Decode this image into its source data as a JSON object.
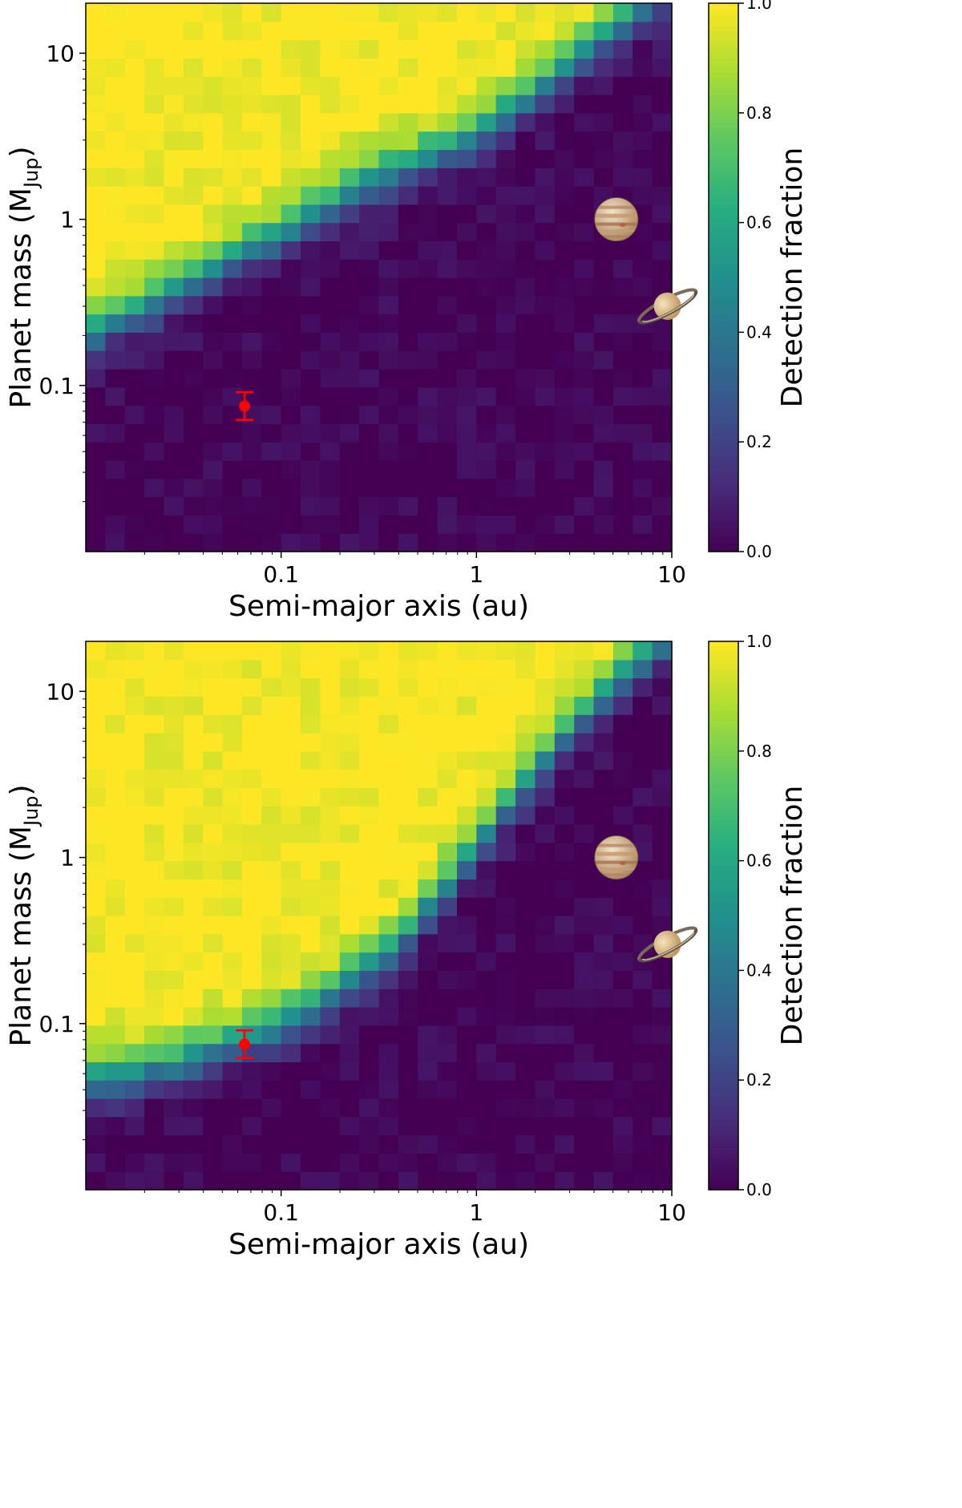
{
  "chart_data": [
    {
      "type": "heatmap",
      "panel": "top",
      "xlabel": "Semi-major axis (au)",
      "ylabel_main": "Planet mass (M",
      "ylabel_sub": "Jup",
      "ylabel_close": ")",
      "colorbar_label": "Detection fraction",
      "x_scale": "log",
      "y_scale": "log",
      "xlim": [
        0.01,
        10
      ],
      "ylim": [
        0.01,
        20
      ],
      "xticks": [
        {
          "value": 0.1,
          "label": "0.1"
        },
        {
          "value": 1,
          "label": "1"
        },
        {
          "value": 10,
          "label": "10"
        }
      ],
      "yticks": [
        {
          "value": 0.1,
          "label": "0.1"
        },
        {
          "value": 1,
          "label": "1"
        },
        {
          "value": 10,
          "label": "10"
        }
      ],
      "colorbar_ticks": [
        {
          "value": 0.0,
          "label": "0.0"
        },
        {
          "value": 0.2,
          "label": "0.2"
        },
        {
          "value": 0.4,
          "label": "0.4"
        },
        {
          "value": 0.6,
          "label": "0.6"
        },
        {
          "value": 0.8,
          "label": "0.8"
        },
        {
          "value": 1.0,
          "label": "1.0"
        }
      ],
      "colormap": "viridis",
      "grid": {
        "nx": 30,
        "ny": 30
      },
      "transition_boundary": [
        [
          0.01,
          0.2
        ],
        [
          0.03,
          0.4
        ],
        [
          0.1,
          0.85
        ],
        [
          0.3,
          1.8
        ],
        [
          1,
          3.2
        ],
        [
          3,
          9
        ],
        [
          10,
          26
        ]
      ],
      "observed_planet": {
        "a": 0.065,
        "mass": 0.075,
        "mass_err_low": 0.013,
        "mass_err_high": 0.016,
        "color": "#ff0000"
      },
      "reference_planets": [
        {
          "icon": "jupiter-icon",
          "a": 5.2,
          "mass": 1.0
        },
        {
          "icon": "saturn-icon",
          "a": 9.5,
          "mass": 0.3
        }
      ]
    },
    {
      "type": "heatmap",
      "panel": "bottom",
      "xlabel": "Semi-major axis (au)",
      "ylabel_main": "Planet mass (M",
      "ylabel_sub": "Jup",
      "ylabel_close": ")",
      "colorbar_label": "Detection fraction",
      "x_scale": "log",
      "y_scale": "log",
      "xlim": [
        0.01,
        10
      ],
      "ylim": [
        0.01,
        20
      ],
      "xticks": [
        {
          "value": 0.1,
          "label": "0.1"
        },
        {
          "value": 1,
          "label": "1"
        },
        {
          "value": 10,
          "label": "10"
        }
      ],
      "yticks": [
        {
          "value": 0.1,
          "label": "0.1"
        },
        {
          "value": 1,
          "label": "1"
        },
        {
          "value": 10,
          "label": "10"
        }
      ],
      "colorbar_ticks": [
        {
          "value": 0.0,
          "label": "0.0"
        },
        {
          "value": 0.2,
          "label": "0.2"
        },
        {
          "value": 0.4,
          "label": "0.4"
        },
        {
          "value": 0.6,
          "label": "0.6"
        },
        {
          "value": 0.8,
          "label": "0.8"
        },
        {
          "value": 1.0,
          "label": "1.0"
        }
      ],
      "colormap": "viridis",
      "grid": {
        "nx": 30,
        "ny": 30
      },
      "transition_boundary": [
        [
          0.01,
          0.045
        ],
        [
          0.03,
          0.06
        ],
        [
          0.1,
          0.1
        ],
        [
          0.2,
          0.17
        ],
        [
          0.4,
          0.3
        ],
        [
          0.7,
          0.7
        ],
        [
          1.5,
          2.2
        ],
        [
          3,
          6
        ],
        [
          6,
          14
        ],
        [
          10,
          22
        ]
      ],
      "observed_planet": {
        "a": 0.065,
        "mass": 0.075,
        "mass_err_low": 0.013,
        "mass_err_high": 0.016,
        "color": "#ff0000"
      },
      "reference_planets": [
        {
          "icon": "jupiter-icon",
          "a": 5.2,
          "mass": 1.0
        },
        {
          "icon": "saturn-icon",
          "a": 9.5,
          "mass": 0.3
        }
      ]
    }
  ]
}
